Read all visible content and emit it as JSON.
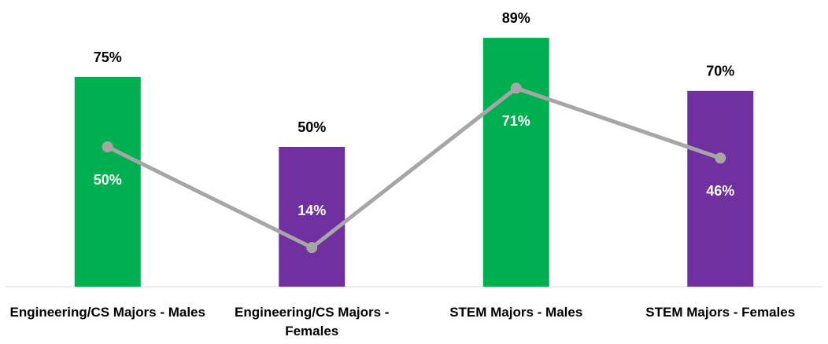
{
  "chart_data": {
    "type": "bar",
    "categories": [
      "Engineering/CS Majors - Males",
      "Engineering/CS Majors - Females",
      "STEM Majors - Males",
      "STEM Majors - Females"
    ],
    "series": [
      {
        "type": "bar",
        "colors": [
          "#00b050",
          "#7030a0",
          "#00b050",
          "#7030a0"
        ],
        "values": [
          75,
          50,
          89,
          70
        ],
        "value_labels": [
          "75%",
          "50%",
          "89%",
          "70%"
        ]
      },
      {
        "type": "line",
        "color": "#a6a6a6",
        "values": [
          50,
          14,
          71,
          46
        ],
        "value_labels": [
          "50%",
          "14%",
          "71%",
          "46%"
        ]
      }
    ],
    "ylim": [
      0,
      100
    ]
  }
}
